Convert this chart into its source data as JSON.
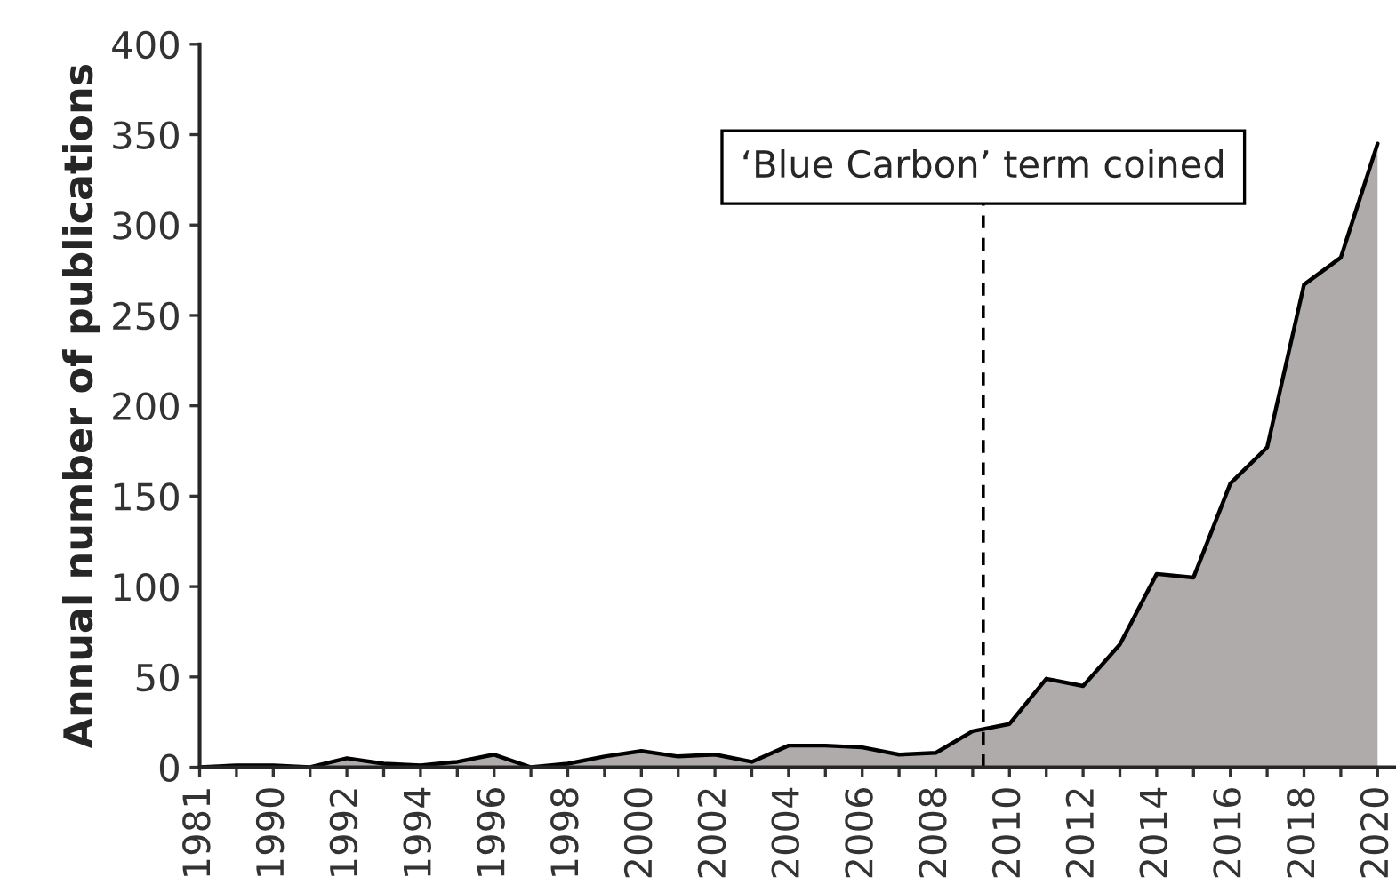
{
  "chart_data": {
    "type": "area",
    "ylabel": "Annual number of publications",
    "categories": [
      "1981",
      null,
      "1990",
      null,
      "1992",
      null,
      "1994",
      null,
      "1996",
      null,
      "1998",
      null,
      "2000",
      null,
      "2002",
      null,
      "2004",
      null,
      "2006",
      null,
      "2008",
      null,
      "2010",
      null,
      "2012",
      null,
      "2014",
      null,
      "2016",
      null,
      "2018",
      null,
      "2020"
    ],
    "series": [
      {
        "color": "#afabab",
        "values": [
          0,
          1,
          1,
          0,
          5,
          2,
          1,
          3,
          7,
          0,
          2,
          6,
          9,
          6,
          7,
          3,
          12,
          12,
          11,
          7,
          8,
          20,
          24,
          49,
          45,
          68,
          107,
          105,
          157,
          177,
          267,
          282,
          345
        ]
      }
    ],
    "ylim": [
      0,
      400
    ],
    "yticks": [
      0,
      50,
      100,
      150,
      200,
      250,
      300,
      350,
      400
    ],
    "annotations": [
      "‘Blue Carbon’ term coined"
    ],
    "grid": false,
    "legend": false
  }
}
